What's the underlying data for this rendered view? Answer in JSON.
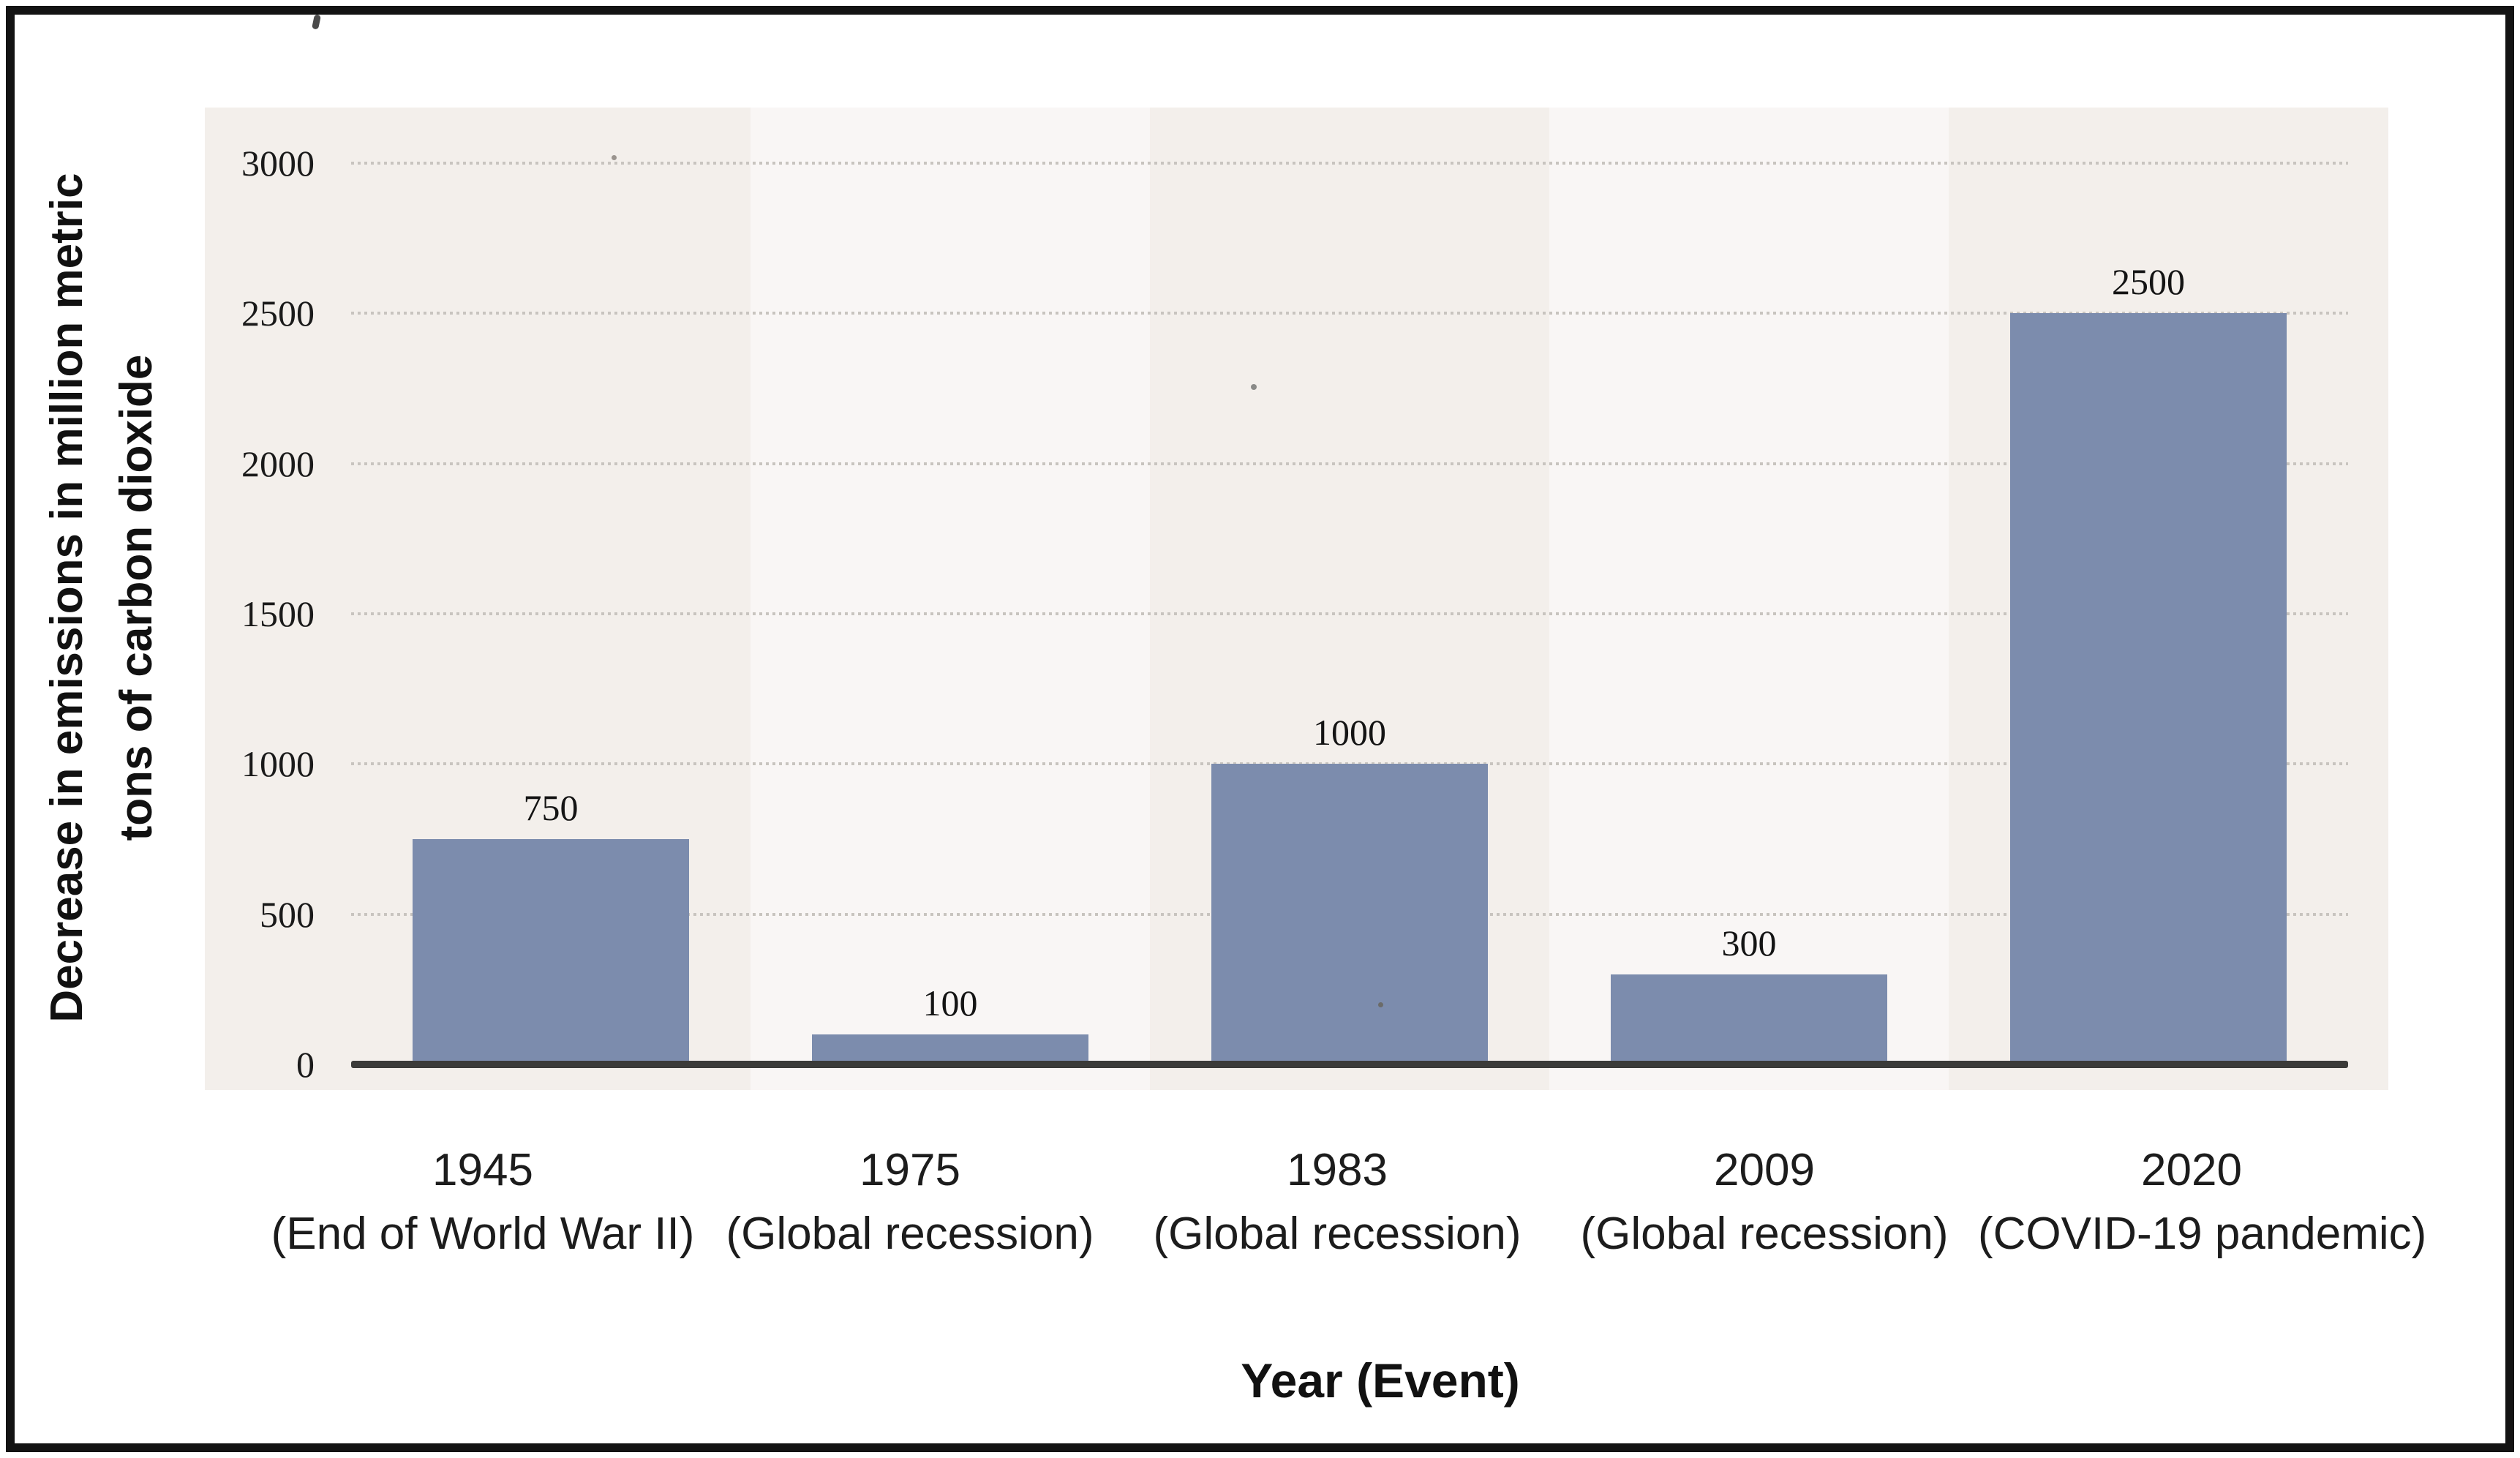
{
  "window": {
    "background": "#ffffff",
    "frame_border_color": "#131313"
  },
  "axes": {
    "y_title_line1": "Decrease in emissions in million metric",
    "y_title_line2": "tons of carbon dioxide",
    "x_title": "Year (Event)"
  },
  "chart_data": {
    "type": "bar",
    "title": "",
    "xlabel": "Year (Event)",
    "ylabel": "Decrease in emissions in million metric tons of carbon dioxide",
    "categories": [
      {
        "year": "1945",
        "event": "(End of World War II)"
      },
      {
        "year": "1975",
        "event": "(Global recession)"
      },
      {
        "year": "1983",
        "event": "(Global recession)"
      },
      {
        "year": "2009",
        "event": "(Global recession)"
      },
      {
        "year": "2020",
        "event": "(COVID-19 pandemic)"
      }
    ],
    "values": [
      750,
      100,
      1000,
      300,
      2500
    ],
    "data_labels": [
      "750",
      "100",
      "1000",
      "300",
      "2500"
    ],
    "yticks": [
      0,
      500,
      1000,
      1500,
      2000,
      2500,
      3000
    ],
    "ylim": [
      0,
      3000
    ],
    "grid": "horizontal-dotted",
    "legend": "none",
    "colors": {
      "bar": "#7c8cad",
      "plot_background": "#f3efeb",
      "plot_band_light": "#f9f6f5",
      "gridline": "#c8c4bf",
      "axis_line": "#3b3b39",
      "text": "#1a1a1a"
    }
  }
}
